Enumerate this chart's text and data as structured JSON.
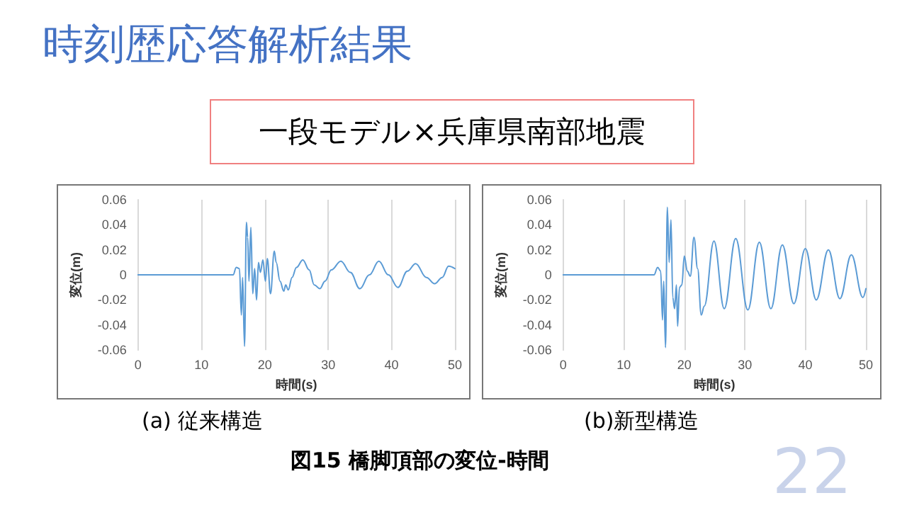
{
  "chart_data": [
    {
      "type": "line",
      "title": "時刻歴応答解析結果",
      "subtitle": "一段モデル×兵庫県南部地震",
      "xlabel": "時間(s)",
      "ylabel": "変位(m)",
      "annotations": [
        "(a) 従来構造",
        "図15 橋脚頂部の変位-時間",
        "22"
      ],
      "x": [
        0,
        15,
        15.5,
        16,
        16.3,
        16.5,
        16.8,
        17.1,
        17.3,
        17.5,
        17.8,
        18.1,
        18.4,
        18.7,
        19,
        19.3,
        19.7,
        20.1,
        20.4,
        20.9,
        21.5,
        21.8,
        22.4,
        23,
        23.3,
        23.7,
        24.3,
        25,
        26,
        27,
        27.8,
        28.7,
        29.5,
        30.5,
        32,
        33.5,
        35,
        36.5,
        38,
        39.5,
        41,
        42.5,
        43.8,
        45.5,
        46.8,
        48,
        49,
        50
      ],
      "series": [
        {
          "color": "#5b9bd5",
          "values": [
            0,
            0,
            0.006,
            0.005,
            -0.032,
            -0.002,
            -0.057,
            0.042,
            0.03,
            -0.005,
            0.038,
            -0.015,
            0.005,
            -0.02,
            0.01,
            0.002,
            0.012,
            -0.005,
            0.013,
            -0.015,
            0.019,
            0.01,
            -0.005,
            -0.013,
            -0.008,
            -0.012,
            -0.002,
            0.006,
            0.012,
            0.004,
            -0.008,
            -0.011,
            -0.005,
            0.004,
            0.011,
            0.002,
            -0.011,
            0,
            0.011,
            0,
            -0.01,
            0.003,
            0.009,
            -0.002,
            -0.007,
            -0.002,
            0.007,
            0.005
          ]
        }
      ],
      "xlim": [
        0,
        50
      ],
      "xticks": [
        0,
        10,
        20,
        30,
        40,
        50
      ],
      "ylim": [
        -0.06,
        0.06
      ],
      "yticks": [
        -0.06,
        -0.04,
        -0.02,
        0,
        0.02,
        0.04,
        0.06
      ],
      "grid": "x",
      "marker": "none",
      "line_style": "solid"
    },
    {
      "type": "line",
      "xlabel": "時間(s)",
      "ylabel": "変位(m)",
      "annotations": [
        "(b)新型構造"
      ],
      "x": [
        0,
        15,
        15.6,
        16.1,
        16.4,
        16.6,
        16.9,
        17.2,
        17.5,
        17.8,
        18.1,
        18.4,
        18.7,
        18.9,
        19.2,
        19.6,
        20,
        20.5,
        21,
        21.6,
        22.2,
        22.8,
        23.3,
        24.9,
        26.6,
        28.5,
        30.5,
        32.4,
        34.3,
        36.2,
        38.1,
        40,
        41.8,
        43.8,
        45.7,
        47.6,
        49.5,
        50
      ],
      "series": [
        {
          "color": "#5b9bd5",
          "values": [
            0,
            0,
            0.006,
            0.003,
            -0.036,
            -0.005,
            -0.058,
            0.054,
            0.01,
            0.044,
            -0.018,
            -0.027,
            -0.008,
            -0.041,
            -0.01,
            -0.008,
            0.015,
            0.003,
            -0.001,
            0.03,
            0.005,
            -0.032,
            -0.025,
            0.027,
            -0.027,
            0.029,
            -0.028,
            0.026,
            -0.027,
            0.024,
            -0.023,
            0.021,
            -0.02,
            0.02,
            -0.019,
            0.016,
            -0.018,
            -0.011
          ]
        }
      ],
      "xlim": [
        0,
        50
      ],
      "xticks": [
        0,
        10,
        20,
        30,
        40,
        50
      ],
      "ylim": [
        -0.06,
        0.06
      ],
      "yticks": [
        -0.06,
        -0.04,
        -0.02,
        0,
        0.02,
        0.04,
        0.06
      ],
      "grid": "x",
      "marker": "none",
      "line_style": "solid"
    }
  ]
}
